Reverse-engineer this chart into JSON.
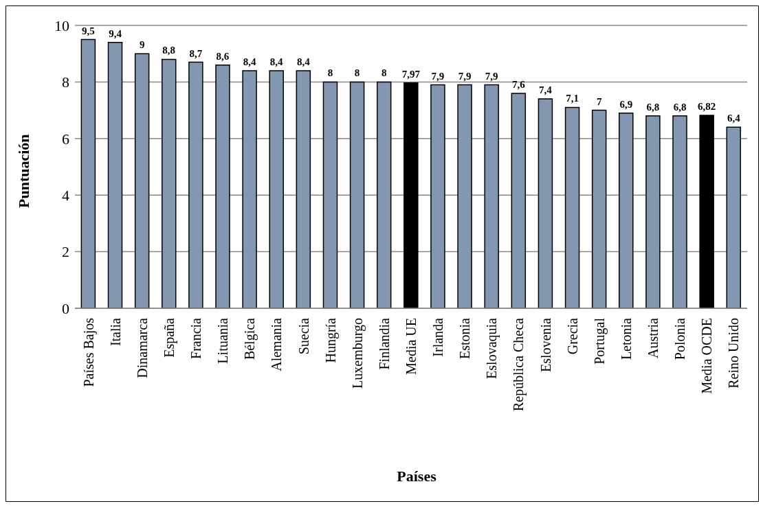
{
  "chart_data": {
    "type": "bar",
    "xlabel": "Países",
    "ylabel": "Puntuación",
    "categories": [
      "Países Bajos",
      "Italia",
      "Dinamarca",
      "España",
      "Francia",
      "Lituania",
      "Bélgica",
      "Alemania",
      "Suecia",
      "Hungría",
      "Luxemburgo",
      "Finlandia",
      "Media UE",
      "Irlanda",
      "Estonia",
      "Eslovaquia",
      "República Checa",
      "Eslovenia",
      "Grecia",
      "Portugal",
      "Letonia",
      "Austria",
      "Polonia",
      "Media OCDE",
      "Reino Unido"
    ],
    "values": [
      9.5,
      9.4,
      9,
      8.8,
      8.7,
      8.6,
      8.4,
      8.4,
      8.4,
      8,
      8,
      8,
      7.97,
      7.9,
      7.9,
      7.9,
      7.6,
      7.4,
      7.1,
      7,
      6.9,
      6.8,
      6.8,
      6.82,
      6.4
    ],
    "colors": [
      "#8497b0",
      "#8497b0",
      "#8497b0",
      "#8497b0",
      "#8497b0",
      "#8497b0",
      "#8497b0",
      "#8497b0",
      "#8497b0",
      "#8497b0",
      "#8497b0",
      "#8497b0",
      "#000000",
      "#8497b0",
      "#8497b0",
      "#8497b0",
      "#8497b0",
      "#8497b0",
      "#8497b0",
      "#8497b0",
      "#8497b0",
      "#8497b0",
      "#8497b0",
      "#000000",
      "#8497b0"
    ],
    "value_labels": [
      "9,5",
      "9,4",
      "9",
      "8,8",
      "8,7",
      "8,6",
      "8,4",
      "8,4",
      "8,4",
      "8",
      "8",
      "8",
      "7,97",
      "7,9",
      "7,9",
      "7,9",
      "7,6",
      "7,4",
      "7,1",
      "7",
      "6,9",
      "6,8",
      "6,8",
      "6,82",
      "6,4"
    ],
    "ylim": [
      0,
      10
    ],
    "yticks": [
      0,
      2,
      4,
      6,
      8,
      10
    ],
    "grid": "y"
  }
}
